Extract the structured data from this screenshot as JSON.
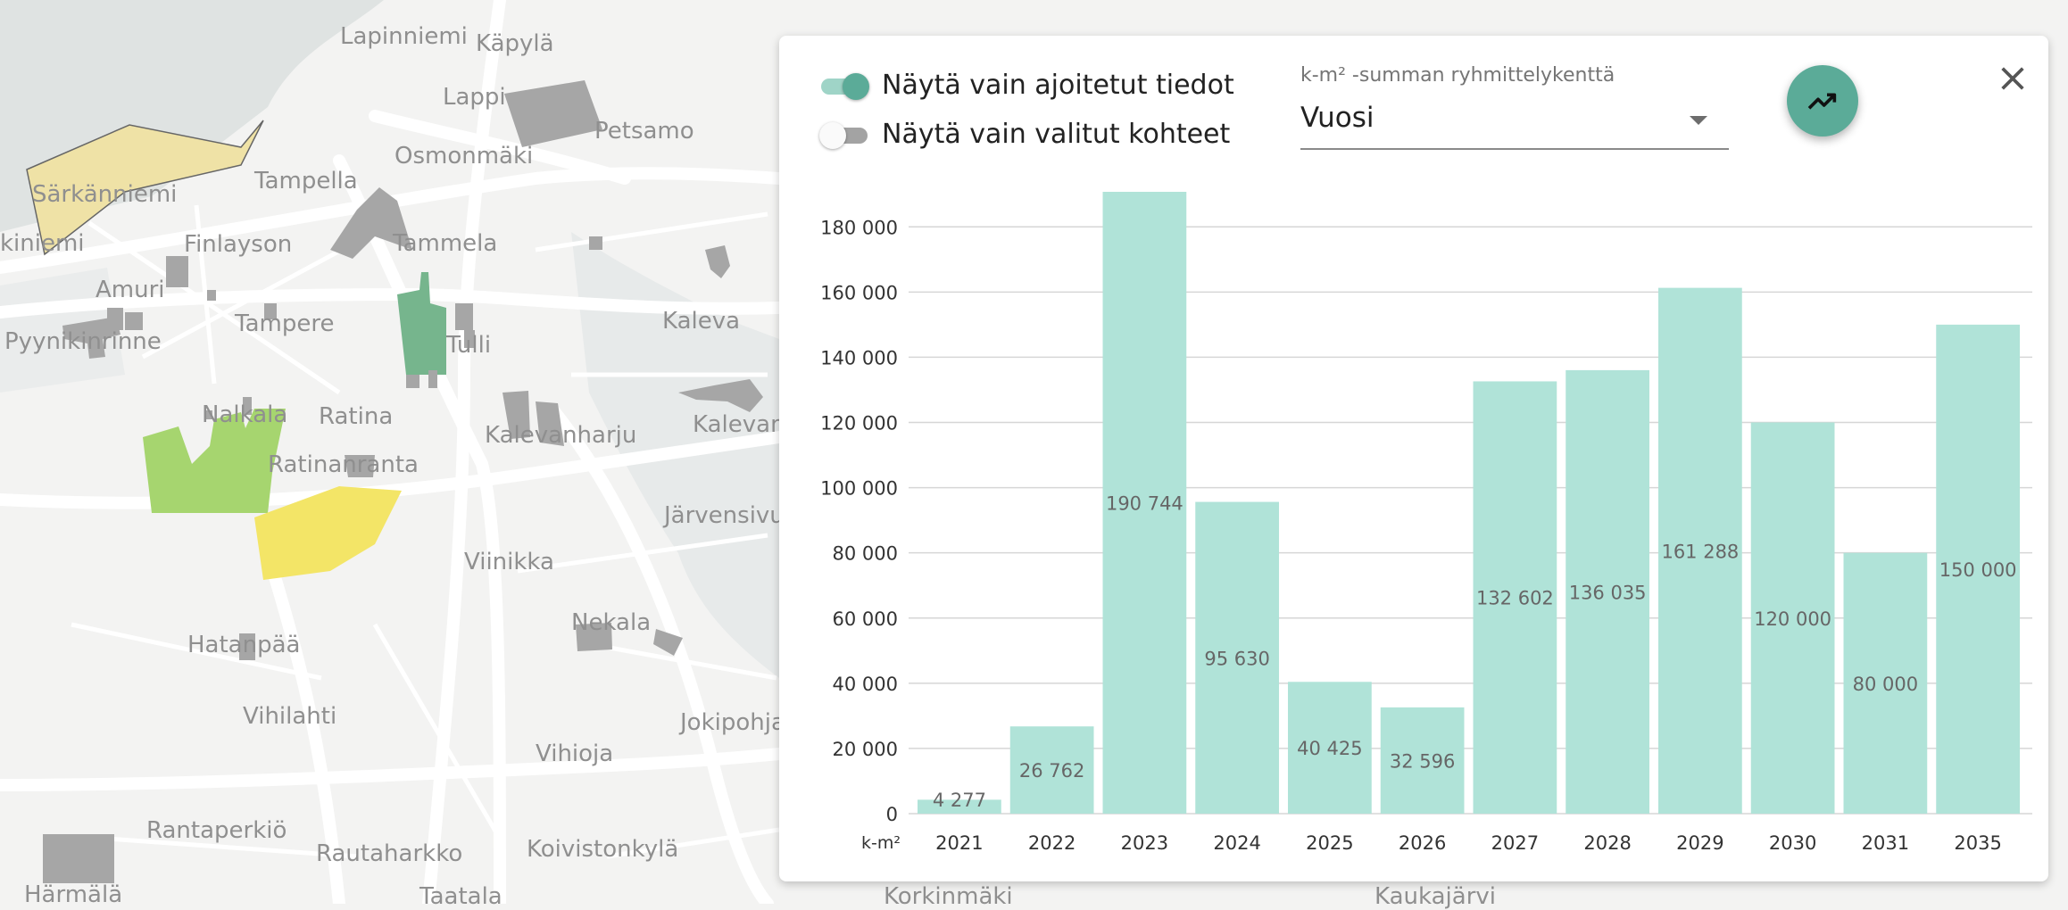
{
  "map": {
    "labels": [
      "Lapinniemi",
      "Käpylä",
      "Lappi",
      "Petsamo",
      "Osmonmäki",
      "Särkänniemi",
      "Tampella",
      "Finlayson",
      "Tammela",
      "Amuri",
      "Kaleva",
      "Tampere",
      "Pyynikinrinne",
      "Tulli",
      "Nalkala",
      "Ratina",
      "Kalevanharju",
      "Kalevan",
      "Ratinanranta",
      "Järvensivu",
      "Viinikka",
      "Nekala",
      "Hatanpää",
      "Vihilahti",
      "Jokipohja",
      "Vihioja",
      "Rantaperkiö",
      "Rautaharkko",
      "Koivistonkylä",
      "Härmälä",
      "Taatala",
      "Kaukajärvi",
      "Korkinmäki",
      "kiniemi"
    ]
  },
  "panel": {
    "toggles": [
      {
        "label": "Näytä vain ajoitetut tiedot",
        "checked": true
      },
      {
        "label": "Näytä vain valitut kohteet",
        "checked": false
      }
    ],
    "select": {
      "caption": "k-m² -summan ryhmittelykenttä",
      "value": "Vuosi"
    },
    "fab_icon": "trending-up-icon",
    "close_icon": "close-icon"
  },
  "chart_data": {
    "type": "bar",
    "title": "",
    "xlabel": "",
    "ylabel": "k-m²",
    "categories": [
      "2021",
      "2022",
      "2023",
      "2024",
      "2025",
      "2026",
      "2027",
      "2028",
      "2029",
      "2030",
      "2031",
      "2035"
    ],
    "values": [
      4277,
      26762,
      190744,
      95630,
      40425,
      32596,
      132602,
      136035,
      161288,
      120000,
      80000,
      150000
    ],
    "value_labels": [
      "4 277",
      "26 762",
      "190 744",
      "95 630",
      "40 425",
      "32 596",
      "132 602",
      "136 035",
      "161 288",
      "120 000",
      "80 000",
      "150 000"
    ],
    "ylim": [
      0,
      190744
    ],
    "yticks": [
      0,
      20000,
      40000,
      60000,
      80000,
      100000,
      120000,
      140000,
      160000,
      180000
    ],
    "ytick_labels": [
      "0",
      "20 000",
      "40 000",
      "60 000",
      "80 000",
      "100 000",
      "120 000",
      "140 000",
      "160 000",
      "180 000"
    ],
    "grid": true,
    "colors": {
      "bar": "#b0e3d8",
      "grid": "#d6d6d6",
      "tick_text": "#333333",
      "value_text": "#666666"
    }
  },
  "colors": {
    "accent": "#5bab98",
    "accent_light": "#9fd4c7"
  }
}
